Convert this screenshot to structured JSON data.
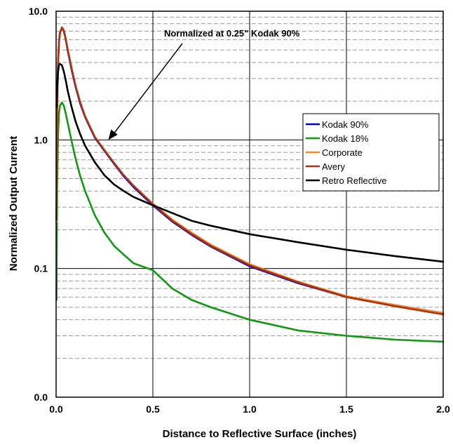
{
  "chart_data": {
    "type": "line",
    "title": "",
    "xlabel": "Distance to Reflective Surface (inches)",
    "ylabel": "Normalized Output Current",
    "xlim": [
      0,
      2
    ],
    "ylim": [
      0.01,
      10
    ],
    "y_scale": "log",
    "grid": true,
    "x_ticks": [
      0,
      0.5,
      1.0,
      1.5,
      2.0
    ],
    "x_tick_labels": [
      "0.0",
      "0.5",
      "1.0",
      "1.5",
      "2.0"
    ],
    "y_ticks": [
      0.01,
      0.1,
      1,
      10
    ],
    "y_tick_labels": [
      "0.0",
      "0.1",
      "1.0",
      "10.0"
    ],
    "legend_position": "right",
    "annotation": {
      "text": "Normalized at 0.25\" Kodak 90%",
      "x": 0.27,
      "y": 1.0
    },
    "series": [
      {
        "name": "Kodak 90%",
        "color": "#0000dd",
        "x": [
          0.002,
          0.005,
          0.01,
          0.015,
          0.02,
          0.03,
          0.04,
          0.05,
          0.06,
          0.08,
          0.1,
          0.125,
          0.15,
          0.2,
          0.25,
          0.3,
          0.35,
          0.4,
          0.5,
          0.6,
          0.7,
          0.8,
          1.0,
          1.25,
          1.5,
          1.75,
          2.0
        ],
        "y": [
          0.25,
          1.6,
          4.0,
          5.8,
          6.8,
          7.4,
          7.0,
          6.0,
          4.9,
          3.5,
          2.6,
          1.9,
          1.5,
          1.04,
          0.82,
          0.65,
          0.52,
          0.43,
          0.31,
          0.232,
          0.183,
          0.148,
          0.104,
          0.077,
          0.06,
          0.052,
          0.045
        ]
      },
      {
        "name": "Kodak 18%",
        "color": "#119911",
        "x": [
          0.002,
          0.005,
          0.01,
          0.015,
          0.02,
          0.03,
          0.04,
          0.05,
          0.06,
          0.08,
          0.1,
          0.125,
          0.15,
          0.2,
          0.25,
          0.3,
          0.35,
          0.4,
          0.5,
          0.6,
          0.7,
          0.8,
          1.0,
          1.25,
          1.5,
          1.75,
          2.0
        ],
        "y": [
          0.057,
          0.4,
          1.1,
          1.6,
          1.85,
          1.95,
          1.85,
          1.6,
          1.35,
          0.98,
          0.72,
          0.52,
          0.4,
          0.26,
          0.19,
          0.15,
          0.128,
          0.11,
          0.097,
          0.07,
          0.057,
          0.05,
          0.04,
          0.033,
          0.03,
          0.028,
          0.027
        ]
      },
      {
        "name": "Corporate",
        "color": "#ff8822",
        "x": [
          0.002,
          0.005,
          0.01,
          0.015,
          0.02,
          0.03,
          0.04,
          0.05,
          0.06,
          0.08,
          0.1,
          0.125,
          0.15,
          0.2,
          0.25,
          0.3,
          0.35,
          0.4,
          0.5,
          0.6,
          0.7,
          0.8,
          1.0,
          1.25,
          1.5,
          1.75,
          2.0
        ],
        "y": [
          0.23,
          1.5,
          3.9,
          5.7,
          6.7,
          7.4,
          7.1,
          6.1,
          5.0,
          3.6,
          2.65,
          1.95,
          1.52,
          1.06,
          0.83,
          0.66,
          0.53,
          0.44,
          0.32,
          0.24,
          0.19,
          0.153,
          0.108,
          0.079,
          0.061,
          0.052,
          0.045
        ]
      },
      {
        "name": "Avery",
        "color": "#aa3311",
        "x": [
          0.002,
          0.005,
          0.01,
          0.015,
          0.02,
          0.03,
          0.04,
          0.05,
          0.06,
          0.08,
          0.1,
          0.125,
          0.15,
          0.2,
          0.25,
          0.3,
          0.35,
          0.4,
          0.5,
          0.6,
          0.7,
          0.8,
          1.0,
          1.25,
          1.5,
          1.75,
          2.0
        ],
        "y": [
          0.24,
          1.55,
          3.95,
          5.8,
          6.8,
          7.5,
          7.1,
          6.1,
          5.0,
          3.6,
          2.65,
          1.95,
          1.52,
          1.05,
          0.83,
          0.66,
          0.53,
          0.44,
          0.315,
          0.236,
          0.186,
          0.15,
          0.106,
          0.078,
          0.06,
          0.051,
          0.044
        ]
      },
      {
        "name": "Retro Reflective",
        "color": "#000000",
        "x": [
          0.002,
          0.005,
          0.01,
          0.015,
          0.02,
          0.03,
          0.04,
          0.05,
          0.06,
          0.08,
          0.1,
          0.125,
          0.15,
          0.2,
          0.25,
          0.3,
          0.35,
          0.4,
          0.5,
          0.6,
          0.7,
          0.8,
          1.0,
          1.25,
          1.5,
          1.75,
          2.0
        ],
        "y": [
          1.8,
          2.6,
          3.4,
          3.8,
          3.9,
          3.8,
          3.4,
          2.9,
          2.4,
          1.8,
          1.4,
          1.1,
          0.9,
          0.67,
          0.53,
          0.45,
          0.4,
          0.36,
          0.31,
          0.27,
          0.235,
          0.215,
          0.185,
          0.16,
          0.14,
          0.125,
          0.113
        ]
      }
    ]
  }
}
